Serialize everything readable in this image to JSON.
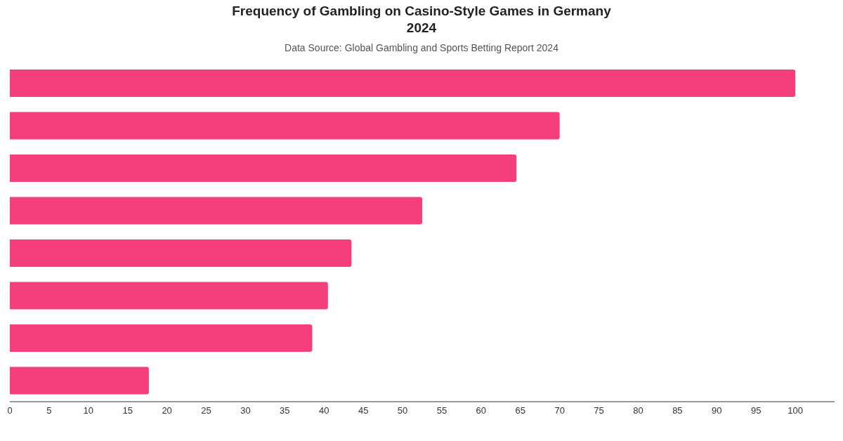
{
  "chart_data": {
    "type": "bar",
    "orientation": "horizontal",
    "title": "Frequency of Gambling on Casino-Style Games in Germany 2024",
    "subtitle": "Data Source: Global Gambling and Sports Betting Report 2024",
    "categories": [
      null,
      null,
      null,
      null,
      null,
      null,
      null,
      null
    ],
    "values": [
      100,
      70,
      64.5,
      52.5,
      43.5,
      40.5,
      38.5,
      17.7
    ],
    "color": "#f43f7c",
    "xlim": [
      0,
      105
    ],
    "xticks": [
      0,
      5,
      10,
      15,
      20,
      25,
      30,
      35,
      40,
      45,
      50,
      55,
      60,
      65,
      70,
      75,
      80,
      85,
      90,
      95,
      100
    ],
    "grid": false,
    "legend": false
  }
}
